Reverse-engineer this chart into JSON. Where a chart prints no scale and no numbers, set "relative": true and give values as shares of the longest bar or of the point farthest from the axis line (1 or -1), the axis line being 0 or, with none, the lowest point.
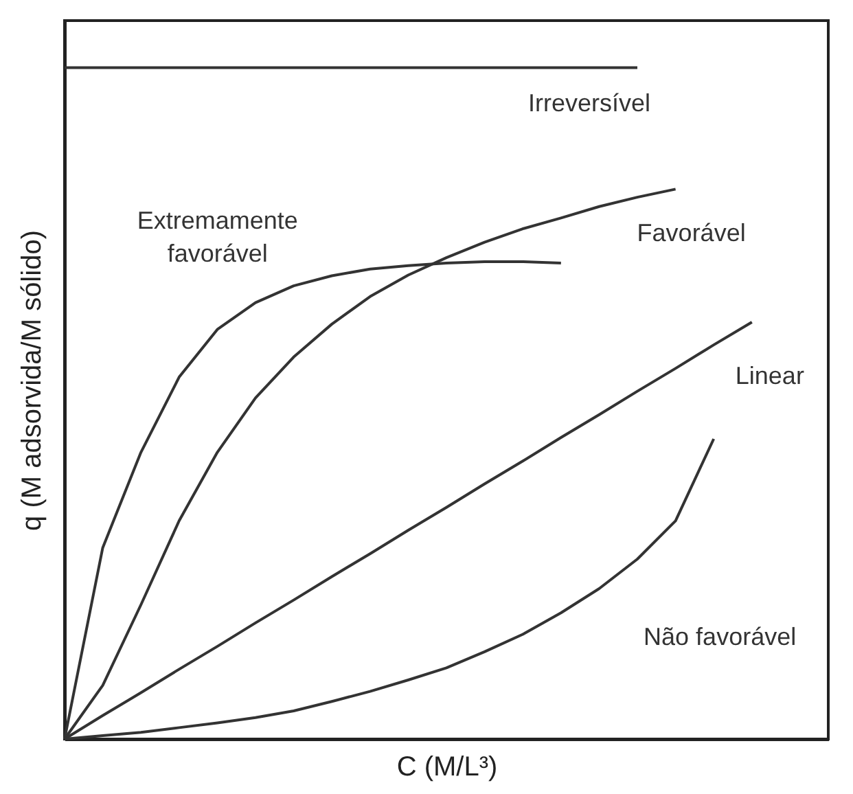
{
  "chart_data": {
    "type": "line",
    "relative": true,
    "xlabel": "C (M/L³)",
    "ylabel": "q (M adsorvida/M sólido)",
    "categories": [
      null,
      null,
      null,
      null,
      null,
      null,
      null,
      null,
      null,
      null,
      null,
      null,
      null,
      null,
      null,
      null,
      null,
      null,
      null,
      null,
      null
    ],
    "grid": false,
    "marker": "none",
    "line_style": "solid",
    "series": [
      {
        "name": "Irreversível",
        "color": "#333333",
        "values": [
          1,
          1,
          1,
          1,
          1,
          1,
          1,
          1,
          1,
          1,
          1,
          1,
          1,
          1,
          1,
          1,
          null,
          null,
          null,
          null,
          null
        ]
      },
      {
        "name": "Extremamente favorável",
        "color": "#333333",
        "values": [
          0,
          0.285,
          0.427,
          0.539,
          0.61,
          0.65,
          0.675,
          0.69,
          0.7,
          0.705,
          0.709,
          0.711,
          0.711,
          0.709,
          null,
          null,
          null,
          null,
          null,
          null,
          null
        ]
      },
      {
        "name": "Favorável",
        "color": "#333333",
        "values": [
          0,
          0.08,
          0.2,
          0.325,
          0.427,
          0.508,
          0.569,
          0.618,
          0.659,
          0.691,
          0.717,
          0.74,
          0.76,
          0.776,
          0.793,
          0.807,
          0.819,
          null,
          null,
          null,
          null
        ]
      },
      {
        "name": "Linear",
        "color": "#333333",
        "values": [
          0,
          0.035,
          0.069,
          0.104,
          0.138,
          0.173,
          0.207,
          0.242,
          0.276,
          0.311,
          0.345,
          0.38,
          0.414,
          0.449,
          0.483,
          0.518,
          0.552,
          0.587,
          0.621,
          null,
          null
        ]
      },
      {
        "name": "Não favorável",
        "color": "#333333",
        "values": [
          0,
          0.005,
          0.01,
          0.017,
          0.024,
          0.032,
          0.042,
          0.056,
          0.071,
          0.088,
          0.106,
          0.13,
          0.156,
          0.188,
          0.224,
          0.268,
          0.325,
          0.447,
          null,
          null,
          null
        ]
      }
    ]
  }
}
